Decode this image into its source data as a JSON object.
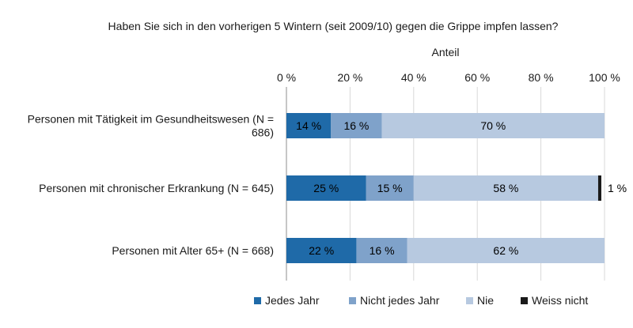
{
  "chart_data": {
    "type": "bar",
    "orientation": "horizontal",
    "stacked": true,
    "title": "Haben Sie sich in den vorherigen 5 Wintern (seit 2009/10) gegen die Grippe impfen lassen?",
    "xlabel": "Anteil",
    "x_axis_position": "top",
    "xlim": [
      0,
      100
    ],
    "xticks": [
      0,
      20,
      40,
      60,
      80,
      100
    ],
    "tick_suffix": " %",
    "grid": "vertical",
    "legend_position": "bottom",
    "categories": [
      [
        "Personen mit Tätigkeit im Gesundheitswesen (N =",
        "686)"
      ],
      [
        "Personen mit chronischer Erkrankung (N = 645)"
      ],
      [
        "Personen mit Alter 65+ (N = 668)"
      ]
    ],
    "series": [
      {
        "name": "Jedes Jahr",
        "color": "#1f6aa8",
        "text_color": "#000000",
        "values": [
          14,
          25,
          22
        ],
        "labels": [
          "14 %",
          "25 %",
          "22 %"
        ]
      },
      {
        "name": "Nicht jedes Jahr",
        "color": "#7fa2ca",
        "text_color": "#000000",
        "values": [
          16,
          15,
          16
        ],
        "labels": [
          "16 %",
          "15 %",
          "16 %"
        ]
      },
      {
        "name": "Nie",
        "color": "#b7c9e0",
        "text_color": "#000000",
        "values": [
          70,
          58,
          62
        ],
        "labels": [
          "70 %",
          "58 %",
          "62 %"
        ]
      },
      {
        "name": "Weiss nicht",
        "color": "#1a1a1a",
        "text_color": "#000000",
        "values": [
          0,
          1,
          0
        ],
        "labels": [
          "",
          "1 %",
          ""
        ]
      }
    ]
  }
}
